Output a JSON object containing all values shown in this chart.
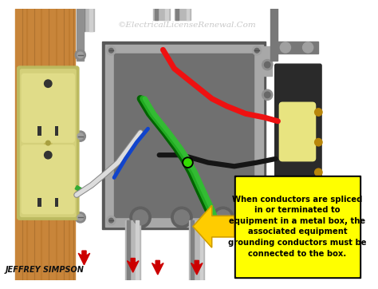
{
  "title": "©ElectricalLicenseRenewal.Com",
  "author": "Jeffrey Simpson",
  "callout_text": "When conductors are spliced\nin or terminated to\nequipment in a metal box, the\nassociated equipment\ngrounding conductors must be\nconnected to the box.",
  "callout_bg": "#FFFF00",
  "callout_border": "#000000",
  "background_color": "#FFFFFF",
  "fig_width": 4.74,
  "fig_height": 3.62,
  "dpi": 100,
  "wood_color": "#B8752A",
  "wood_mid": "#C8853A",
  "wood_dark": "#8B5A20",
  "metal_box_color": "#A8A8A8",
  "metal_box_light": "#C8C8C8",
  "metal_box_dark": "#585858",
  "metal_box_inner": "#707070",
  "conduit_color": "#B8B8B8",
  "conduit_dark": "#808080",
  "outlet_body": "#D4D07A",
  "outlet_face": "#E0DC88",
  "outlet_dark": "#BCBA60",
  "switch_body": "#2A2A2A",
  "switch_plate": "#787878",
  "switch_toggle": "#E8E480",
  "wire_red": "#EE1111",
  "wire_black": "#151515",
  "wire_white": "#DDDDDD",
  "wire_green": "#22AA22",
  "wire_green2": "#118811",
  "wire_blue": "#1144CC",
  "indicator_green": "#33DD00",
  "arrow_red": "#CC0000",
  "bracket_color": "#909090",
  "screw_color": "#C0C0C0",
  "terminal_brass": "#B8860B"
}
